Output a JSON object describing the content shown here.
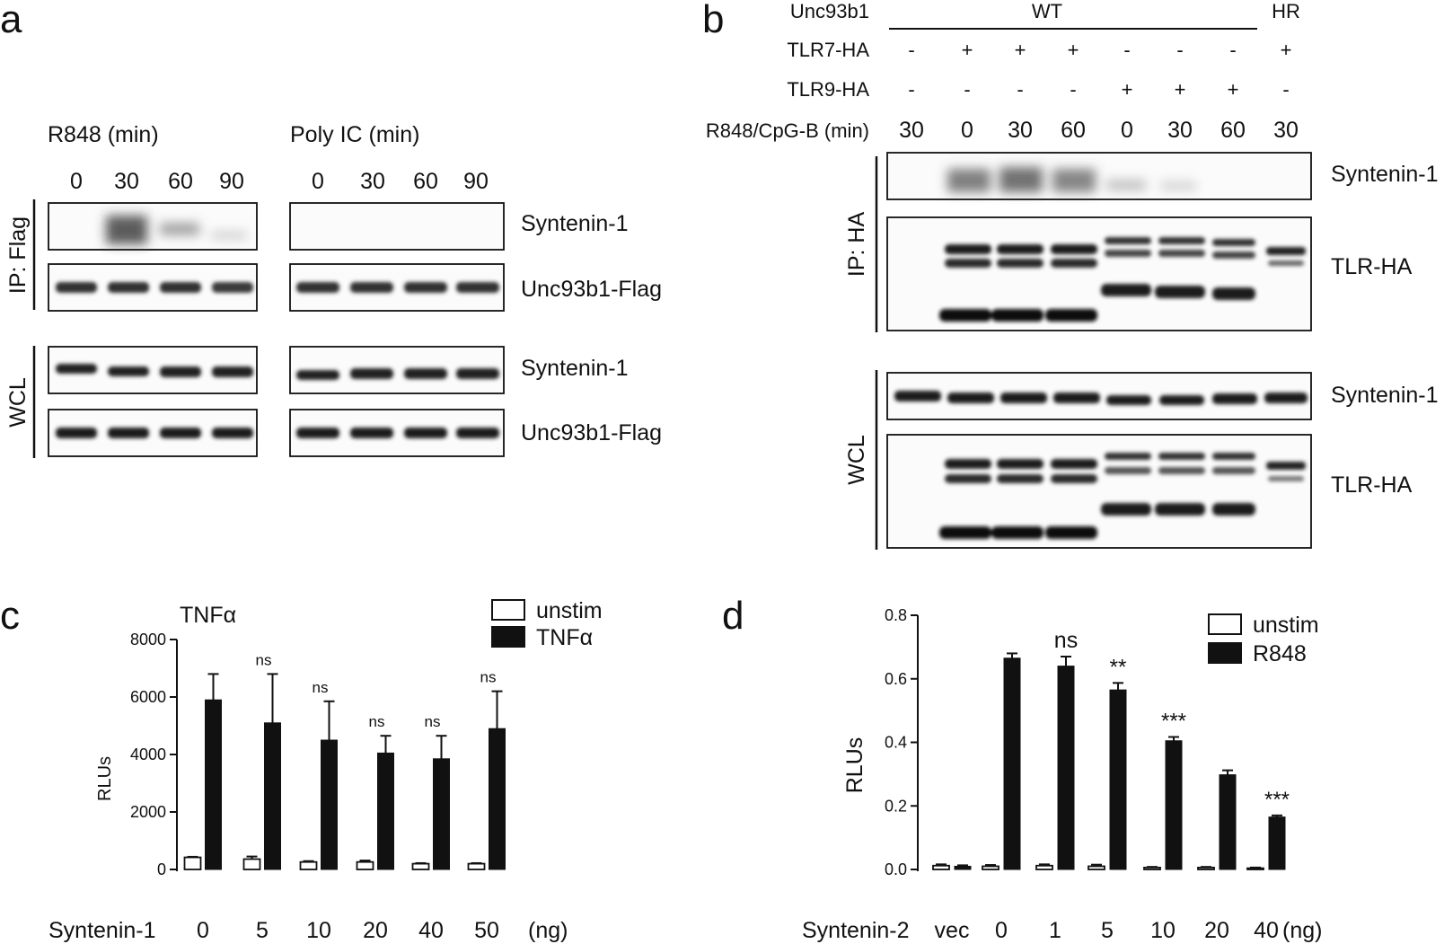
{
  "panel_a": {
    "letter": "a",
    "r848_header": "R848 (min)",
    "polyic_header": "Poly IC (min)",
    "times": [
      "0",
      "30",
      "60",
      "90"
    ],
    "ip_label": "IP: Flag",
    "wcl_label": "WCL",
    "blot_labels": [
      "Syntenin-1",
      "Unc93b1-Flag",
      "Syntenin-1",
      "Unc93b1-Flag"
    ]
  },
  "panel_b": {
    "letter": "b",
    "row_labels": [
      "Unc93b1",
      "TLR7-HA",
      "TLR9-HA",
      "R848/CpG-B (min)"
    ],
    "wt_label": "WT",
    "hr_label": "HR",
    "tlr7": [
      "-",
      "+",
      "+",
      "+",
      "-",
      "-",
      "-",
      "+"
    ],
    "tlr9": [
      "-",
      "-",
      "-",
      "-",
      "+",
      "+",
      "+",
      "-"
    ],
    "times": [
      "30",
      "0",
      "30",
      "60",
      "0",
      "30",
      "60",
      "30"
    ],
    "ip_label": "IP: HA",
    "wcl_label": "WCL",
    "blot_labels": [
      "Syntenin-1",
      "TLR-HA",
      "Syntenin-1",
      "TLR-HA"
    ]
  },
  "chart_data": [
    {
      "panel": "c",
      "type": "bar",
      "title": "TNFα",
      "xlabel": "Syntenin-1",
      "x_unit": "(ng)",
      "ylabel": "RLUs",
      "ylim": [
        0,
        8000
      ],
      "yticks": [
        "0",
        "2000",
        "4000",
        "6000",
        "8000"
      ],
      "categories": [
        "0",
        "5",
        "10",
        "20",
        "40",
        "50"
      ],
      "series": [
        {
          "name": "unstim",
          "values": [
            420,
            360,
            260,
            260,
            200,
            200
          ],
          "errors": [
            20,
            90,
            30,
            50,
            20,
            20
          ],
          "color": "#ffffff"
        },
        {
          "name": "TNFα",
          "values": [
            5900,
            5100,
            4500,
            4050,
            3850,
            4900
          ],
          "errors": [
            900,
            1700,
            1350,
            600,
            800,
            1300
          ],
          "color": "#111111"
        }
      ],
      "significance": [
        "",
        "ns",
        "ns",
        "ns",
        "ns",
        "ns"
      ],
      "legend_position": "top-right"
    },
    {
      "panel": "d",
      "type": "bar",
      "title": "",
      "xlabel": "Syntenin-2",
      "x_unit": "(ng)",
      "ylabel": "RLUs",
      "ylim": [
        0,
        0.8
      ],
      "yticks": [
        "0.0",
        "0.2",
        "0.4",
        "0.6",
        "0.8"
      ],
      "categories": [
        "vec",
        "0",
        "1",
        "5",
        "10",
        "20",
        "40"
      ],
      "series": [
        {
          "name": "unstim",
          "values": [
            0.012,
            0.01,
            0.012,
            0.01,
            0.006,
            0.006,
            0.004
          ],
          "errors": [
            0.004,
            0.004,
            0.004,
            0.005,
            0.002,
            0.002,
            0.002
          ],
          "color": "#ffffff"
        },
        {
          "name": "R848",
          "values": [
            0.01,
            0.665,
            0.64,
            0.565,
            0.405,
            0.298,
            0.165
          ],
          "errors": [
            0.003,
            0.015,
            0.03,
            0.022,
            0.012,
            0.014,
            0.005
          ],
          "color": "#111111"
        }
      ],
      "significance": [
        "",
        "",
        "ns",
        "**",
        "***",
        "",
        "***"
      ],
      "legend_position": "top-right"
    }
  ]
}
